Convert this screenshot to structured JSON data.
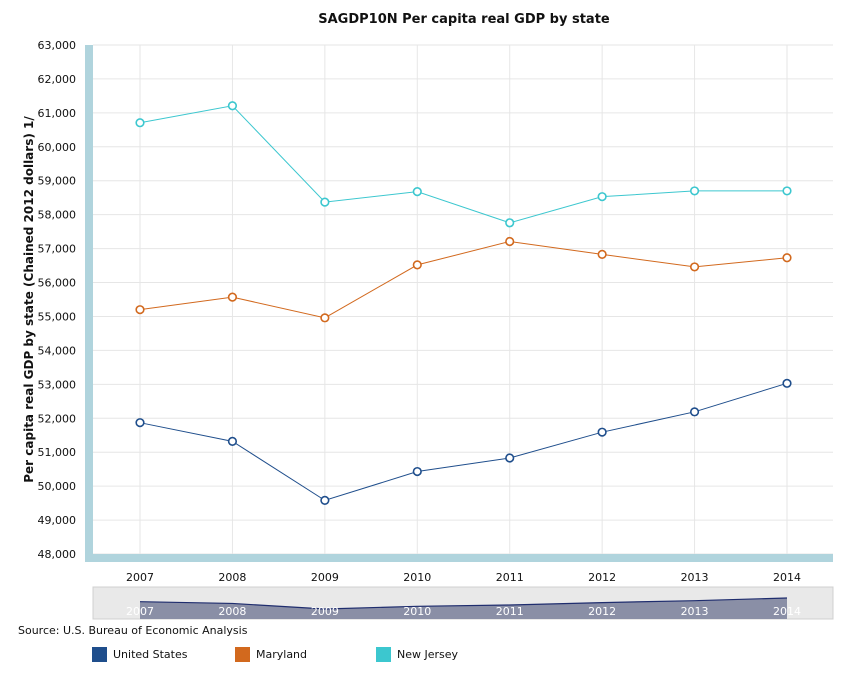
{
  "chart_data": {
    "type": "line",
    "title": "SAGDP10N Per capita real GDP by state",
    "ylabel": "Per capita real GDP by state (Chained 2012 dollars) 1/",
    "xlabel": "",
    "categories": [
      "2007",
      "2008",
      "2009",
      "2010",
      "2011",
      "2012",
      "2013",
      "2014"
    ],
    "ylim": [
      48000,
      63000
    ],
    "yticks": [
      48000,
      49000,
      50000,
      51000,
      52000,
      53000,
      54000,
      55000,
      56000,
      57000,
      58000,
      59000,
      60000,
      61000,
      62000,
      63000
    ],
    "grid": true,
    "legend_position": "bottom",
    "series": [
      {
        "name": "United States",
        "color": "#1f4e8c",
        "values": [
          51870,
          51320,
          49580,
          50430,
          50830,
          51590,
          52190,
          53030
        ]
      },
      {
        "name": "Maryland",
        "color": "#d2691e",
        "values": [
          55200,
          55570,
          54960,
          56520,
          57210,
          56830,
          56460,
          56730
        ]
      },
      {
        "name": "New Jersey",
        "color": "#3cc7cf",
        "values": [
          60710,
          61210,
          58370,
          58680,
          57760,
          58530,
          58700,
          58700
        ]
      }
    ],
    "source": "Source: U.S. Bureau of Economic Analysis"
  }
}
